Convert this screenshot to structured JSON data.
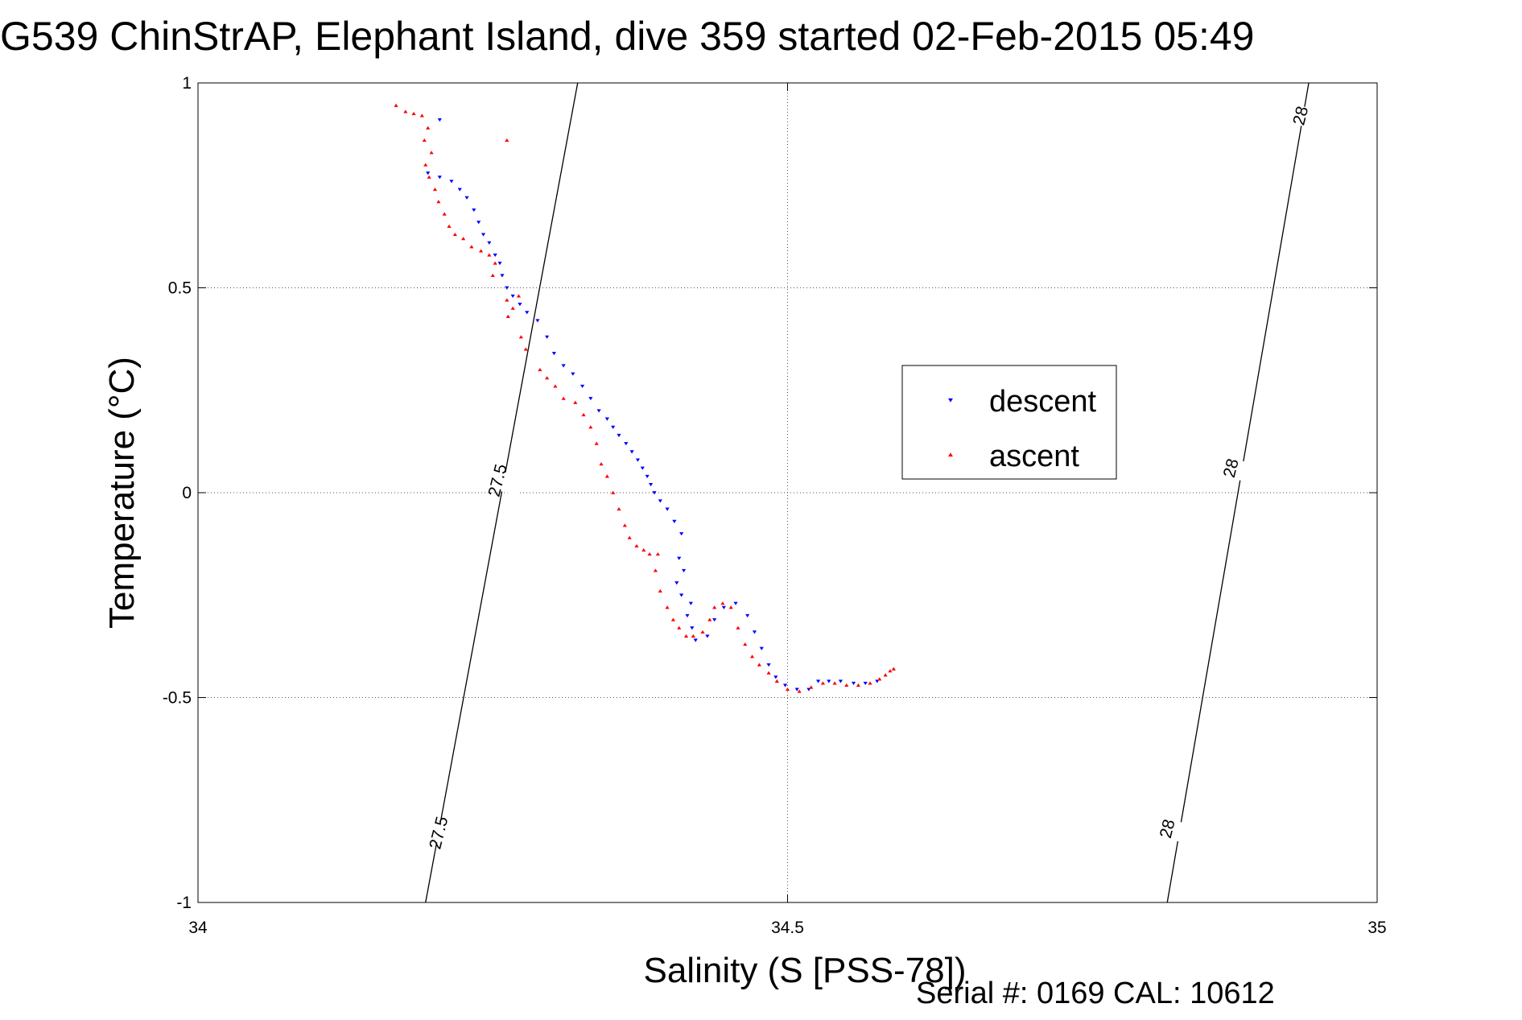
{
  "chart_data": {
    "type": "scatter",
    "title": "G539 ChinStrAP, Elephant Island, dive 359 started 02-Feb-2015 05:49",
    "xlabel": "Salinity (S [PSS-78])",
    "ylabel": "Temperature (°C)",
    "footer": "Serial #: 0169 CAL: 10612",
    "xlim": [
      34,
      35
    ],
    "ylim": [
      -1,
      1
    ],
    "x_ticks": [
      {
        "value": 34,
        "label": "34"
      },
      {
        "value": 34.5,
        "label": "34.5"
      },
      {
        "value": 35,
        "label": "35"
      }
    ],
    "y_ticks": [
      {
        "value": 1,
        "label": "1"
      },
      {
        "value": 0.5,
        "label": "0.5"
      },
      {
        "value": 0,
        "label": "0"
      },
      {
        "value": -0.5,
        "label": "-0.5"
      },
      {
        "value": -1,
        "label": "-1"
      }
    ],
    "grid": true,
    "grid_style": "dotted",
    "legend_position": "center-right",
    "density_contours": [
      {
        "label": "27.5",
        "points": [
          [
            34.193,
            -1.0
          ],
          [
            34.322,
            1.0
          ]
        ]
      },
      {
        "label": "28",
        "points": [
          [
            34.822,
            -1.0
          ],
          [
            34.942,
            1.0
          ]
        ]
      }
    ],
    "contour_labels": [
      {
        "text": "27.5",
        "x": 34.254,
        "y": 0.03
      },
      {
        "text": "27.5",
        "x": 34.204,
        "y": -0.83
      },
      {
        "text": "28",
        "x": 34.935,
        "y": 0.92
      },
      {
        "text": "28",
        "x": 34.876,
        "y": 0.06
      },
      {
        "text": "28",
        "x": 34.822,
        "y": -0.82
      }
    ],
    "series": [
      {
        "name": "descent",
        "color": "#0000ff",
        "marker": "triangle-down",
        "points": [
          [
            34.205,
            0.91
          ],
          [
            34.195,
            0.78
          ],
          [
            34.205,
            0.77
          ],
          [
            34.215,
            0.76
          ],
          [
            34.222,
            0.74
          ],
          [
            34.228,
            0.72
          ],
          [
            34.234,
            0.69
          ],
          [
            34.238,
            0.66
          ],
          [
            34.242,
            0.63
          ],
          [
            34.247,
            0.61
          ],
          [
            34.252,
            0.58
          ],
          [
            34.256,
            0.56
          ],
          [
            34.258,
            0.53
          ],
          [
            34.262,
            0.5
          ],
          [
            34.267,
            0.48
          ],
          [
            34.273,
            0.46
          ],
          [
            34.279,
            0.44
          ],
          [
            34.288,
            0.42
          ],
          [
            34.296,
            0.38
          ],
          [
            34.302,
            0.34
          ],
          [
            34.31,
            0.31
          ],
          [
            34.318,
            0.29
          ],
          [
            34.326,
            0.26
          ],
          [
            34.333,
            0.23
          ],
          [
            34.34,
            0.2
          ],
          [
            34.347,
            0.18
          ],
          [
            34.352,
            0.16
          ],
          [
            34.357,
            0.14
          ],
          [
            34.363,
            0.12
          ],
          [
            34.368,
            0.1
          ],
          [
            34.373,
            0.08
          ],
          [
            34.377,
            0.06
          ],
          [
            34.381,
            0.04
          ],
          [
            34.384,
            0.02
          ],
          [
            34.387,
            0.0
          ],
          [
            34.392,
            -0.02
          ],
          [
            34.398,
            -0.04
          ],
          [
            34.404,
            -0.07
          ],
          [
            34.41,
            -0.1
          ],
          [
            34.408,
            -0.16
          ],
          [
            34.412,
            -0.19
          ],
          [
            34.406,
            -0.22
          ],
          [
            34.41,
            -0.25
          ],
          [
            34.418,
            -0.27
          ],
          [
            34.415,
            -0.3
          ],
          [
            34.419,
            -0.33
          ],
          [
            34.422,
            -0.36
          ],
          [
            34.432,
            -0.35
          ],
          [
            34.438,
            -0.31
          ],
          [
            34.446,
            -0.28
          ],
          [
            34.456,
            -0.27
          ],
          [
            34.466,
            -0.3
          ],
          [
            34.472,
            -0.34
          ],
          [
            34.478,
            -0.38
          ],
          [
            34.484,
            -0.42
          ],
          [
            34.49,
            -0.45
          ],
          [
            34.498,
            -0.47
          ],
          [
            34.508,
            -0.48
          ],
          [
            34.518,
            -0.48
          ],
          [
            34.526,
            -0.46
          ],
          [
            34.535,
            -0.46
          ],
          [
            34.545,
            -0.46
          ],
          [
            34.556,
            -0.465
          ],
          [
            34.566,
            -0.465
          ],
          [
            34.576,
            -0.46
          ]
        ]
      },
      {
        "name": "ascent",
        "color": "#ff0000",
        "marker": "triangle-up",
        "points": [
          [
            34.168,
            0.945
          ],
          [
            34.176,
            0.93
          ],
          [
            34.183,
            0.925
          ],
          [
            34.19,
            0.92
          ],
          [
            34.195,
            0.89
          ],
          [
            34.192,
            0.86
          ],
          [
            34.198,
            0.83
          ],
          [
            34.193,
            0.8
          ],
          [
            34.196,
            0.77
          ],
          [
            34.201,
            0.74
          ],
          [
            34.204,
            0.71
          ],
          [
            34.209,
            0.68
          ],
          [
            34.213,
            0.65
          ],
          [
            34.218,
            0.63
          ],
          [
            34.225,
            0.62
          ],
          [
            34.232,
            0.6
          ],
          [
            34.24,
            0.59
          ],
          [
            34.247,
            0.58
          ],
          [
            34.252,
            0.56
          ],
          [
            34.25,
            0.53
          ],
          [
            34.262,
            0.47
          ],
          [
            34.267,
            0.45
          ],
          [
            34.263,
            0.43
          ],
          [
            34.272,
            0.48
          ],
          [
            34.262,
            0.86
          ],
          [
            34.274,
            0.38
          ],
          [
            34.278,
            0.35
          ],
          [
            34.29,
            0.3
          ],
          [
            34.296,
            0.28
          ],
          [
            34.303,
            0.26
          ],
          [
            34.31,
            0.23
          ],
          [
            34.32,
            0.22
          ],
          [
            34.327,
            0.19
          ],
          [
            34.333,
            0.16
          ],
          [
            34.338,
            0.12
          ],
          [
            34.342,
            0.07
          ],
          [
            34.347,
            0.04
          ],
          [
            34.352,
            0.0
          ],
          [
            34.357,
            -0.04
          ],
          [
            34.362,
            -0.08
          ],
          [
            34.366,
            -0.11
          ],
          [
            34.372,
            -0.13
          ],
          [
            34.378,
            -0.14
          ],
          [
            34.383,
            -0.15
          ],
          [
            34.39,
            -0.15
          ],
          [
            34.388,
            -0.19
          ],
          [
            34.392,
            -0.24
          ],
          [
            34.398,
            -0.28
          ],
          [
            34.403,
            -0.31
          ],
          [
            34.408,
            -0.33
          ],
          [
            34.414,
            -0.35
          ],
          [
            34.42,
            -0.35
          ],
          [
            34.428,
            -0.34
          ],
          [
            34.434,
            -0.31
          ],
          [
            34.438,
            -0.28
          ],
          [
            34.445,
            -0.27
          ],
          [
            34.452,
            -0.28
          ],
          [
            34.458,
            -0.33
          ],
          [
            34.464,
            -0.37
          ],
          [
            34.47,
            -0.4
          ],
          [
            34.476,
            -0.42
          ],
          [
            34.484,
            -0.44
          ],
          [
            34.491,
            -0.46
          ],
          [
            34.5,
            -0.48
          ],
          [
            34.51,
            -0.485
          ],
          [
            34.52,
            -0.475
          ],
          [
            34.53,
            -0.465
          ],
          [
            34.54,
            -0.465
          ],
          [
            34.55,
            -0.47
          ],
          [
            34.56,
            -0.47
          ],
          [
            34.57,
            -0.465
          ],
          [
            34.578,
            -0.455
          ],
          [
            34.583,
            -0.445
          ],
          [
            34.587,
            -0.435
          ],
          [
            34.59,
            -0.43
          ]
        ]
      }
    ],
    "legend_entries": [
      {
        "name": "descent",
        "color": "#0000ff",
        "marker": "triangle-down"
      },
      {
        "name": "ascent",
        "color": "#ff0000",
        "marker": "triangle-up"
      }
    ]
  }
}
